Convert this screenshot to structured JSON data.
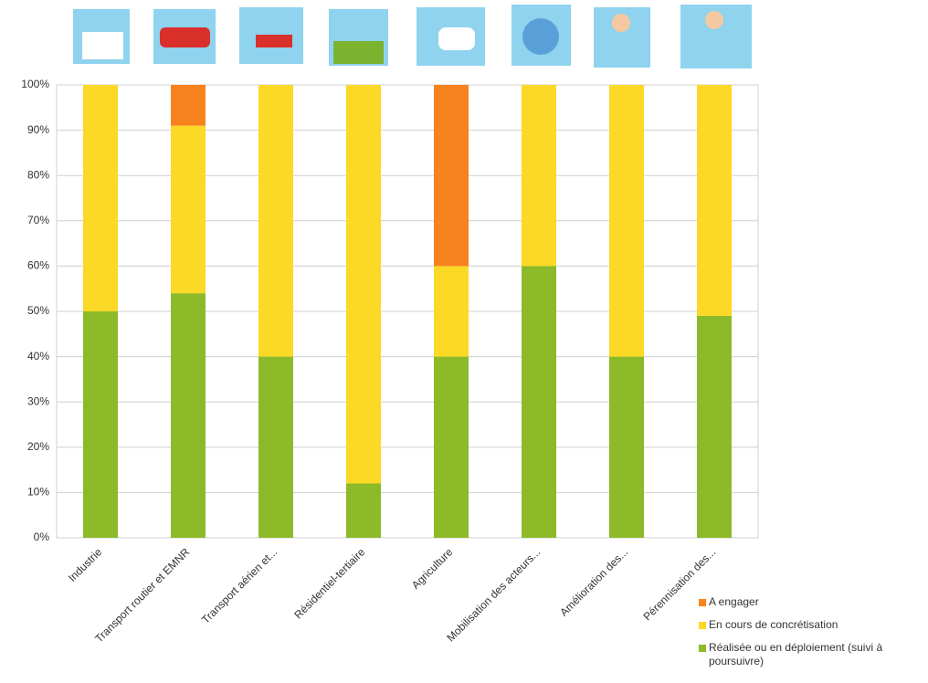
{
  "chart_data": {
    "type": "stacked_bar",
    "categories": [
      "Industrie",
      "Transport routier et EMNR",
      "Transport aérien et...",
      "Résidentiel-tertiaire",
      "Agriculture",
      "Mobilisation des acteurs...",
      "Amélioration des...",
      "Pérennisation des..."
    ],
    "series": [
      {
        "name": "Réalisée ou en déploiement (suivi à poursuivre)",
        "color": "#8cba28",
        "values": [
          50,
          54,
          40,
          12,
          40,
          60,
          40,
          49
        ]
      },
      {
        "name": "En cours de concrétisation",
        "color": "#fcd827",
        "values": [
          50,
          37,
          60,
          88,
          20,
          40,
          60,
          51
        ]
      },
      {
        "name": "A engager",
        "color": "#f7831f",
        "values": [
          0,
          9,
          0,
          0,
          40,
          0,
          0,
          0
        ]
      }
    ],
    "ylim": [
      0,
      100
    ],
    "yticks": [
      {
        "value": 0,
        "label": "0%"
      },
      {
        "value": 10,
        "label": "10%"
      },
      {
        "value": 20,
        "label": "20%"
      },
      {
        "value": 30,
        "label": "30%"
      },
      {
        "value": 40,
        "label": "40%"
      },
      {
        "value": 50,
        "label": "50%"
      },
      {
        "value": 60,
        "label": "60%"
      },
      {
        "value": 70,
        "label": "70%"
      },
      {
        "value": 80,
        "label": "80%"
      },
      {
        "value": 90,
        "label": "90%"
      },
      {
        "value": 100,
        "label": "100%"
      }
    ],
    "grid": true
  }
}
